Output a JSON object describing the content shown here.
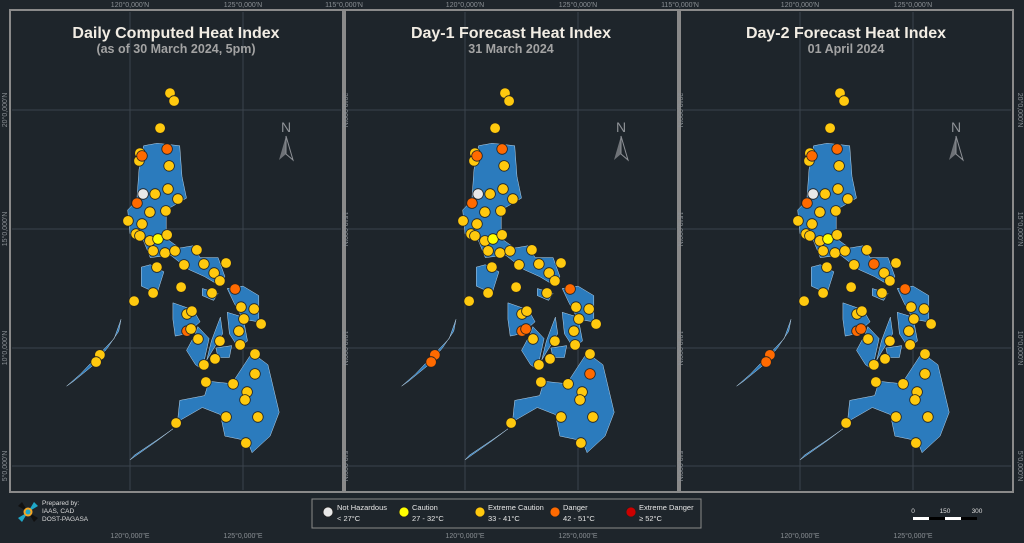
{
  "panels": [
    {
      "title": "Daily Computed Heat Index",
      "subtitle": "(as of 30 March 2024, 5pm)"
    },
    {
      "title": "Day-1 Forecast Heat Index",
      "subtitle": "31 March 2024"
    },
    {
      "title": "Day-2 Forecast Heat Index",
      "subtitle": "01 April 2024"
    }
  ],
  "graticule": {
    "lon_top": [
      "120°0,000'N",
      "125°0,000'N",
      "115°0,000'N"
    ],
    "lon_bottom": [
      "120°0,000\"E",
      "125°0,000\"E"
    ],
    "lat": [
      "20°0,000'N",
      "15°0,000'N",
      "10°0,000'N",
      "5°0,000'N"
    ]
  },
  "north_label": "N",
  "legend": [
    {
      "key": "N",
      "label": "Not Hazardous",
      "range": "< 27°C",
      "color": "#e8e8e8"
    },
    {
      "key": "C",
      "label": "Caution",
      "range": "27 - 32°C",
      "color": "#ffff00"
    },
    {
      "key": "E",
      "label": "Extreme Caution",
      "range": "33 - 41°C",
      "color": "#ffc90e"
    },
    {
      "key": "D",
      "label": "Danger",
      "range": "42 - 51°C",
      "color": "#ff6a00"
    },
    {
      "key": "X",
      "label": "Extreme Danger",
      "range": "≥ 52°C",
      "color": "#cc0000"
    }
  ],
  "credit": {
    "line1": "Prepared by:",
    "line2": "IAAS, CAD",
    "line3": "DOST-PAGASA"
  },
  "scale": {
    "labels": [
      "0",
      "150",
      "300"
    ]
  },
  "colors": {
    "land": "#2b7bbd",
    "background": "#1e252b",
    "grid": "#3b444c",
    "frame": "#8a8a8a"
  },
  "stations": [
    [
      121.77,
      20.71,
      "E",
      "E",
      "E"
    ],
    [
      121.95,
      20.38,
      "E",
      "E",
      "E"
    ],
    [
      121.33,
      19.24,
      "E",
      "E",
      "E"
    ],
    [
      120.44,
      18.19,
      "E",
      "E",
      "E"
    ],
    [
      120.4,
      17.86,
      "E",
      "E",
      "E"
    ],
    [
      120.53,
      18.07,
      "D",
      "D",
      "D"
    ],
    [
      121.64,
      18.36,
      "D",
      "D",
      "D"
    ],
    [
      121.73,
      17.65,
      "E",
      "E",
      "E"
    ],
    [
      120.58,
      16.47,
      "N",
      "N",
      "N"
    ],
    [
      121.11,
      16.47,
      "E",
      "E",
      "E"
    ],
    [
      121.68,
      16.68,
      "E",
      "E",
      "E"
    ],
    [
      122.12,
      16.26,
      "E",
      "E",
      "E"
    ],
    [
      120.31,
      16.09,
      "D",
      "D",
      "D"
    ],
    [
      120.88,
      15.71,
      "E",
      "E",
      "E"
    ],
    [
      121.59,
      15.76,
      "E",
      "E",
      "E"
    ],
    [
      119.91,
      15.34,
      "E",
      "E",
      "E"
    ],
    [
      120.53,
      15.21,
      "E",
      "E",
      "E"
    ],
    [
      120.27,
      14.79,
      "E",
      "E",
      "E"
    ],
    [
      120.44,
      14.71,
      "E",
      "E",
      "E"
    ],
    [
      120.88,
      14.5,
      "E",
      "E",
      "E"
    ],
    [
      121.24,
      14.58,
      "C",
      "C",
      "C"
    ],
    [
      121.64,
      14.75,
      "E",
      "E",
      "E"
    ],
    [
      121.02,
      14.08,
      "E",
      "E",
      "E"
    ],
    [
      121.55,
      13.99,
      "E",
      "E",
      "E"
    ],
    [
      121.99,
      14.08,
      "E",
      "E",
      "E"
    ],
    [
      122.96,
      14.12,
      "E",
      "E",
      "E"
    ],
    [
      121.19,
      13.4,
      "E",
      "E",
      "E"
    ],
    [
      122.39,
      13.49,
      "E",
      "E",
      "E"
    ],
    [
      123.27,
      13.53,
      "E",
      "E",
      "D"
    ],
    [
      124.25,
      13.57,
      "E",
      "E",
      "E"
    ],
    [
      123.72,
      13.15,
      "E",
      "E",
      "E"
    ],
    [
      123.98,
      12.82,
      "E",
      "E",
      "E"
    ],
    [
      124.65,
      12.48,
      "D",
      "D",
      "D"
    ],
    [
      122.26,
      12.56,
      "E",
      "E",
      "E"
    ],
    [
      121.02,
      12.31,
      "E",
      "E",
      "E"
    ],
    [
      120.18,
      11.97,
      "E",
      "E",
      "E"
    ],
    [
      123.63,
      12.31,
      "E",
      "E",
      "E"
    ],
    [
      124.91,
      11.72,
      "E",
      "E",
      "E"
    ],
    [
      125.49,
      11.64,
      "E",
      "E",
      "E"
    ],
    [
      125.04,
      11.22,
      "E",
      "E",
      "E"
    ],
    [
      125.8,
      11.01,
      "E",
      "E",
      "E"
    ],
    [
      122.52,
      11.43,
      "E",
      "E",
      "E"
    ],
    [
      122.74,
      11.55,
      "E",
      "E",
      "E"
    ],
    [
      122.52,
      10.71,
      "D",
      "D",
      "D"
    ],
    [
      122.7,
      10.8,
      "E",
      "D",
      "D"
    ],
    [
      123.01,
      10.38,
      "E",
      "E",
      "E"
    ],
    [
      123.98,
      10.29,
      "E",
      "E",
      "E"
    ],
    [
      124.82,
      10.71,
      "E",
      "E",
      "E"
    ],
    [
      124.87,
      10.13,
      "E",
      "E",
      "E"
    ],
    [
      125.53,
      9.75,
      "E",
      "E",
      "E"
    ],
    [
      123.76,
      9.54,
      "E",
      "E",
      "E"
    ],
    [
      123.27,
      9.29,
      "E",
      "E",
      "E"
    ],
    [
      118.67,
      9.71,
      "E",
      "D",
      "D"
    ],
    [
      118.5,
      9.41,
      "E",
      "D",
      "D"
    ],
    [
      123.36,
      8.57,
      "E",
      "E",
      "E"
    ],
    [
      124.56,
      8.49,
      "E",
      "E",
      "E"
    ],
    [
      125.18,
      8.15,
      "E",
      "E",
      "E"
    ],
    [
      125.09,
      7.82,
      "E",
      "E",
      "E"
    ],
    [
      125.53,
      8.91,
      "E",
      "D",
      "E"
    ],
    [
      124.25,
      7.1,
      "E",
      "E",
      "E"
    ],
    [
      125.66,
      7.1,
      "E",
      "E",
      "E"
    ],
    [
      122.04,
      6.85,
      "E",
      "E",
      "E"
    ],
    [
      125.13,
      6.01,
      "E",
      "E",
      "E"
    ]
  ]
}
